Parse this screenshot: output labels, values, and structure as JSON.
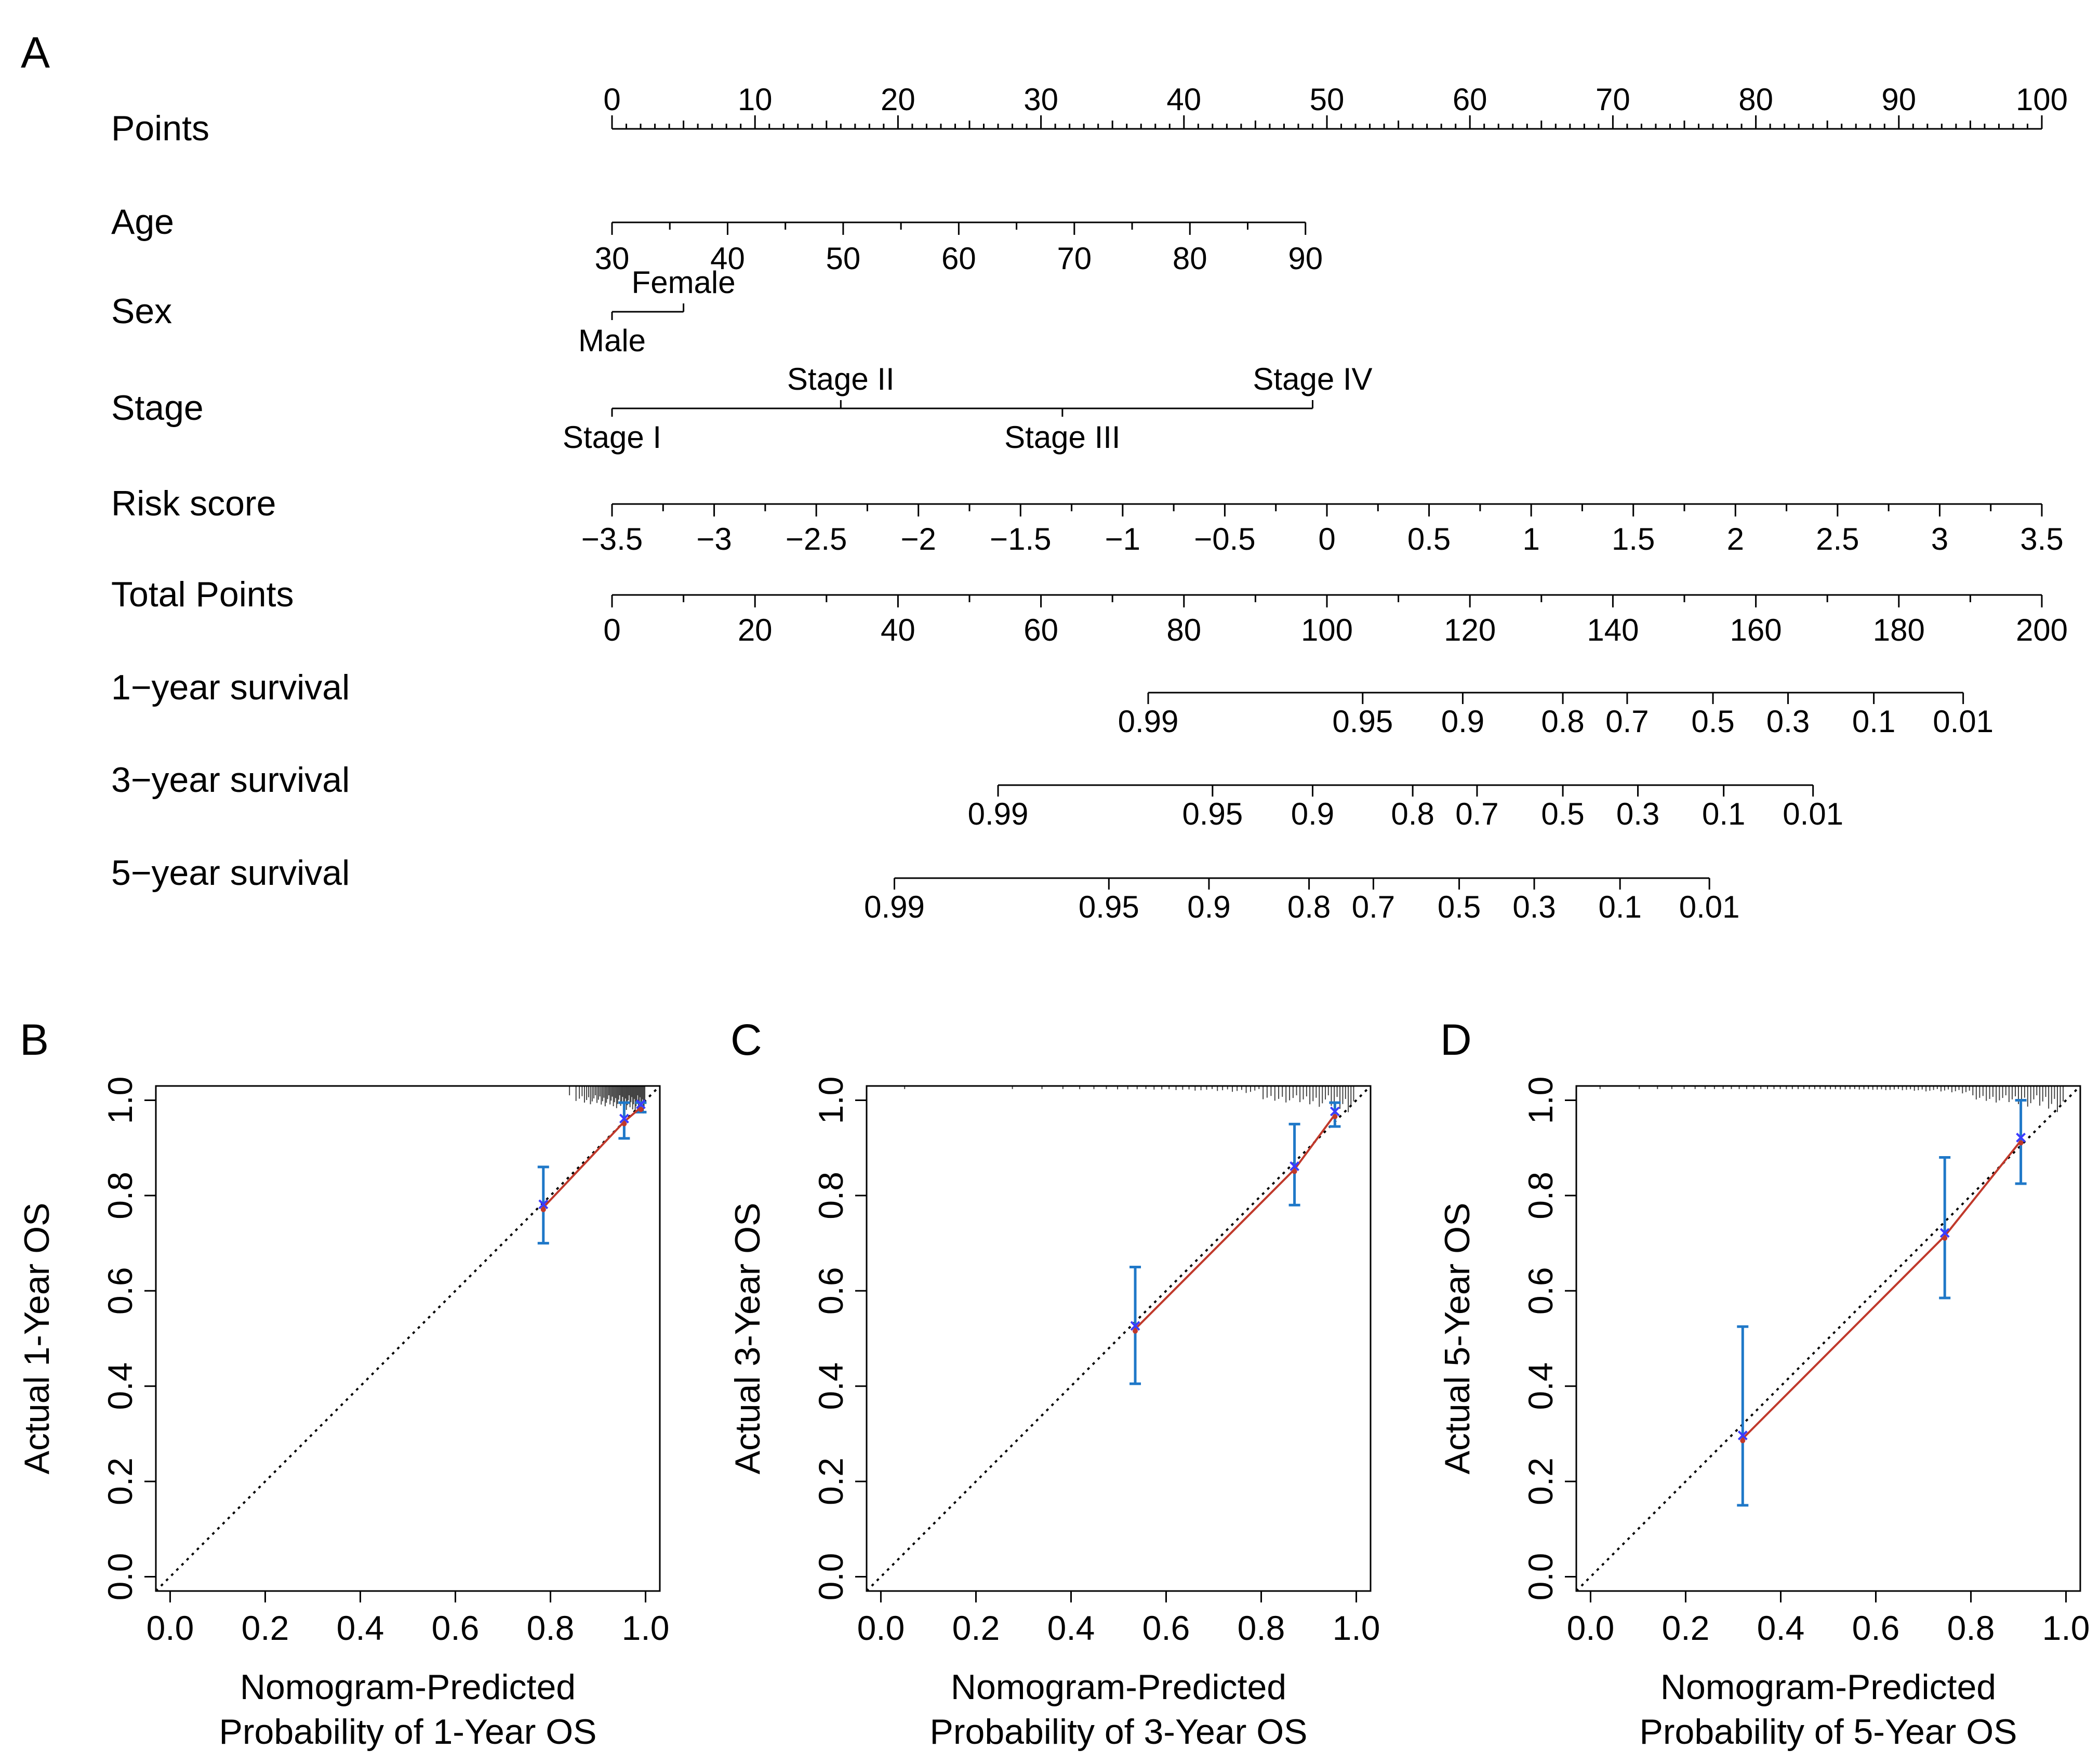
{
  "panel_labels": [
    "A",
    "B",
    "C",
    "D"
  ],
  "nomogram": {
    "rows": [
      {
        "label": "Points",
        "ticks": [
          {
            "value": 0,
            "text": "0"
          },
          {
            "value": 10,
            "text": "10"
          },
          {
            "value": 20,
            "text": "20"
          },
          {
            "value": 30,
            "text": "30"
          },
          {
            "value": 40,
            "text": "40"
          },
          {
            "value": 50,
            "text": "50"
          },
          {
            "value": 60,
            "text": "60"
          },
          {
            "value": 70,
            "text": "70"
          },
          {
            "value": 80,
            "text": "80"
          },
          {
            "value": 90,
            "text": "90"
          },
          {
            "value": 100,
            "text": "100"
          }
        ]
      },
      {
        "label": "Age",
        "ticks": [
          {
            "value": 30,
            "text": "30"
          },
          {
            "value": 40,
            "text": "40"
          },
          {
            "value": 50,
            "text": "50"
          },
          {
            "value": 60,
            "text": "60"
          },
          {
            "value": 70,
            "text": "70"
          },
          {
            "value": 80,
            "text": "80"
          },
          {
            "value": 90,
            "text": "90"
          }
        ]
      },
      {
        "label": "Sex",
        "levels": [
          {
            "text": "Female",
            "points": 5
          },
          {
            "text": "Male",
            "points": 0
          }
        ]
      },
      {
        "label": "Stage",
        "levels": [
          {
            "text": "Stage I",
            "points": 0
          },
          {
            "text": "Stage II",
            "points": 16
          },
          {
            "text": "Stage III",
            "points": 31.5
          },
          {
            "text": "Stage IV",
            "points": 49
          }
        ]
      },
      {
        "label": "Risk score",
        "ticks": [
          {
            "value": -3.5,
            "text": "−3.5"
          },
          {
            "value": -3,
            "text": "−3"
          },
          {
            "value": -2.5,
            "text": "−2.5"
          },
          {
            "value": -2,
            "text": "−2"
          },
          {
            "value": -1.5,
            "text": "−1.5"
          },
          {
            "value": -1,
            "text": "−1"
          },
          {
            "value": -0.5,
            "text": "−0.5"
          },
          {
            "value": 0,
            "text": "0"
          },
          {
            "value": 0.5,
            "text": "0.5"
          },
          {
            "value": 1,
            "text": "1"
          },
          {
            "value": 1.5,
            "text": "1.5"
          },
          {
            "value": 2,
            "text": "2"
          },
          {
            "value": 2.5,
            "text": "2.5"
          },
          {
            "value": 3,
            "text": "3"
          },
          {
            "value": 3.5,
            "text": "3.5"
          }
        ]
      },
      {
        "label": "Total Points",
        "ticks": [
          {
            "value": 0,
            "text": "0"
          },
          {
            "value": 20,
            "text": "20"
          },
          {
            "value": 40,
            "text": "40"
          },
          {
            "value": 60,
            "text": "60"
          },
          {
            "value": 80,
            "text": "80"
          },
          {
            "value": 100,
            "text": "100"
          },
          {
            "value": 120,
            "text": "120"
          },
          {
            "value": 140,
            "text": "140"
          },
          {
            "value": 160,
            "text": "160"
          },
          {
            "value": 180,
            "text": "180"
          },
          {
            "value": 200,
            "text": "200"
          }
        ]
      },
      {
        "label": "1−year survival",
        "ticks": [
          {
            "total_points": 75,
            "text": "0.99"
          },
          {
            "total_points": 105,
            "text": "0.95"
          },
          {
            "total_points": 119,
            "text": "0.9"
          },
          {
            "total_points": 133,
            "text": "0.8"
          },
          {
            "total_points": 142,
            "text": "0.7"
          },
          {
            "total_points": 154,
            "text": "0.5"
          },
          {
            "total_points": 164.5,
            "text": "0.3"
          },
          {
            "total_points": 176.5,
            "text": "0.1"
          },
          {
            "total_points": 189,
            "text": "0.01"
          }
        ]
      },
      {
        "label": "3−year survival",
        "ticks": [
          {
            "total_points": 54,
            "text": "0.99"
          },
          {
            "total_points": 84,
            "text": "0.95"
          },
          {
            "total_points": 98,
            "text": "0.9"
          },
          {
            "total_points": 112,
            "text": "0.8"
          },
          {
            "total_points": 121,
            "text": "0.7"
          },
          {
            "total_points": 133,
            "text": "0.5"
          },
          {
            "total_points": 143.5,
            "text": "0.3"
          },
          {
            "total_points": 155.5,
            "text": "0.1"
          },
          {
            "total_points": 168,
            "text": "0.01"
          }
        ]
      },
      {
        "label": "5−year survival",
        "ticks": [
          {
            "total_points": 39.5,
            "text": "0.99"
          },
          {
            "total_points": 69.5,
            "text": "0.95"
          },
          {
            "total_points": 83.5,
            "text": "0.9"
          },
          {
            "total_points": 97.5,
            "text": "0.8"
          },
          {
            "total_points": 106.5,
            "text": "0.7"
          },
          {
            "total_points": 118.5,
            "text": "0.5"
          },
          {
            "total_points": 129,
            "text": "0.3"
          },
          {
            "total_points": 141,
            "text": "0.1"
          },
          {
            "total_points": 153.5,
            "text": "0.01"
          }
        ]
      }
    ]
  },
  "colors": {
    "fit_line": "#c0392b",
    "point_marker": "#3b3bff",
    "error_bar": "#1f78c8",
    "axis": "#000000"
  },
  "chart_data": [
    {
      "panel": "B",
      "type": "line",
      "xlabel": [
        "Nomogram-Predicted",
        "Probability of 1-Year OS"
      ],
      "ylabel": "Actual 1-Year OS",
      "xlim": [
        -0.03,
        1.03
      ],
      "ylim": [
        -0.03,
        1.03
      ],
      "xticks": [
        "0.0",
        "0.2",
        "0.4",
        "0.6",
        "0.8",
        "1.0"
      ],
      "yticks": [
        "0.0",
        "0.2",
        "0.4",
        "0.6",
        "0.8",
        "1.0"
      ],
      "reference_line": {
        "from": [
          0,
          0
        ],
        "to": [
          1,
          1
        ],
        "style": "dotted"
      },
      "points": [
        {
          "x": 0.785,
          "y": 0.775,
          "lower": 0.7,
          "upper": 0.86
        },
        {
          "x": 0.955,
          "y": 0.955,
          "lower": 0.92,
          "upper": 0.995
        },
        {
          "x": 0.99,
          "y": 0.985,
          "lower": 0.975,
          "upper": 0.995
        }
      ],
      "rug": {
        "min": 0.0,
        "max": 1.0,
        "density": "concentrated near 1.0"
      }
    },
    {
      "panel": "C",
      "type": "line",
      "xlabel": [
        "Nomogram-Predicted",
        "Probability of 3-Year OS"
      ],
      "ylabel": "Actual 3-Year OS",
      "xlim": [
        -0.03,
        1.03
      ],
      "ylim": [
        -0.03,
        1.03
      ],
      "xticks": [
        "0.0",
        "0.2",
        "0.4",
        "0.6",
        "0.8",
        "1.0"
      ],
      "yticks": [
        "0.0",
        "0.2",
        "0.4",
        "0.6",
        "0.8",
        "1.0"
      ],
      "reference_line": {
        "from": [
          0,
          0
        ],
        "to": [
          1,
          1
        ],
        "style": "dotted"
      },
      "points": [
        {
          "x": 0.535,
          "y": 0.52,
          "lower": 0.405,
          "upper": 0.65
        },
        {
          "x": 0.87,
          "y": 0.855,
          "lower": 0.78,
          "upper": 0.95
        },
        {
          "x": 0.955,
          "y": 0.97,
          "lower": 0.945,
          "upper": 0.995
        }
      ],
      "rug": {
        "min": 0.0,
        "max": 1.0,
        "density": "concentrated near 0.9-1.0"
      }
    },
    {
      "panel": "D",
      "type": "line",
      "xlabel": [
        "Nomogram-Predicted",
        "Probability of 5-Year OS"
      ],
      "ylabel": "Actual 5-Year OS",
      "xlim": [
        -0.03,
        1.03
      ],
      "ylim": [
        -0.03,
        1.03
      ],
      "xticks": [
        "0.0",
        "0.2",
        "0.4",
        "0.6",
        "0.8",
        "1.0"
      ],
      "yticks": [
        "0.0",
        "0.2",
        "0.4",
        "0.6",
        "0.8",
        "1.0"
      ],
      "reference_line": {
        "from": [
          0,
          0
        ],
        "to": [
          1,
          1
        ],
        "style": "dotted"
      },
      "points": [
        {
          "x": 0.32,
          "y": 0.29,
          "lower": 0.15,
          "upper": 0.525
        },
        {
          "x": 0.745,
          "y": 0.715,
          "lower": 0.585,
          "upper": 0.88
        },
        {
          "x": 0.905,
          "y": 0.915,
          "lower": 0.825,
          "upper": 1.0
        }
      ],
      "rug": {
        "min": 0.0,
        "max": 1.0,
        "density": "spread 0.0-1.0, denser 0.7-1.0"
      }
    }
  ]
}
